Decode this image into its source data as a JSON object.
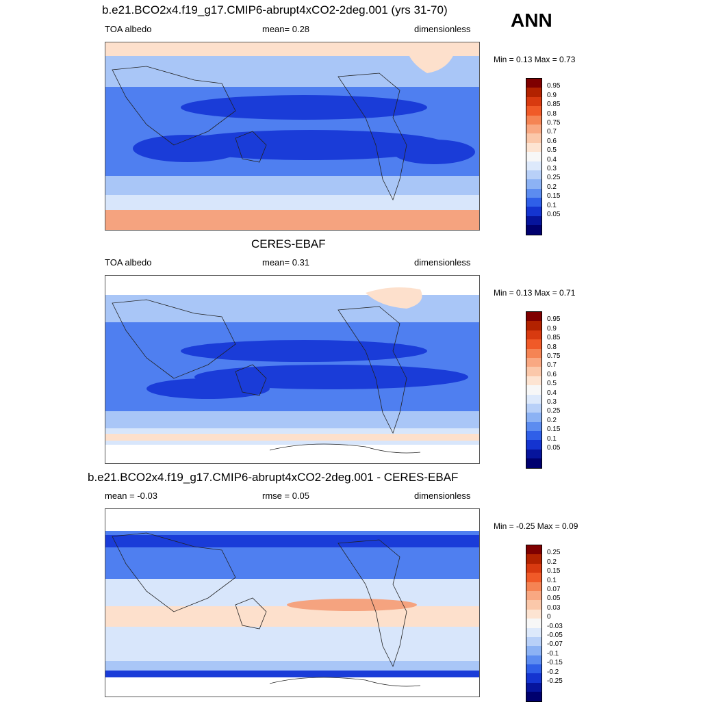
{
  "season": "ANN",
  "panels": [
    {
      "title": "b.e21.BCO2x4.f19_g17.CMIP6-abrupt4xCO2-2deg.001 (yrs 31-70)",
      "left_label": "TOA albedo",
      "center_label": "mean=   0.28",
      "right_label": "dimensionless",
      "minmax": "Min =   0.13 Max =   0.73",
      "colorbar_labels": [
        "0.95",
        "0.9",
        "0.85",
        "0.8",
        "0.75",
        "0.7",
        "0.6",
        "0.5",
        "0.4",
        "0.3",
        "0.25",
        "0.2",
        "0.15",
        "0.1",
        "0.05"
      ]
    },
    {
      "title": "CERES-EBAF",
      "left_label": "TOA albedo",
      "center_label": "mean=   0.31",
      "right_label": "dimensionless",
      "minmax": "Min =   0.13 Max =   0.71",
      "colorbar_labels": [
        "0.95",
        "0.9",
        "0.85",
        "0.8",
        "0.75",
        "0.7",
        "0.6",
        "0.5",
        "0.4",
        "0.3",
        "0.25",
        "0.2",
        "0.15",
        "0.1",
        "0.05"
      ]
    },
    {
      "title": "b.e21.BCO2x4.f19_g17.CMIP6-abrupt4xCO2-2deg.001 - CERES-EBAF",
      "left_label": "mean =  -0.03",
      "center_label": "rmse =   0.05",
      "right_label": "dimensionless",
      "minmax": "Min =  -0.25 Max =   0.09",
      "colorbar_labels": [
        "0.25",
        "0.2",
        "0.15",
        "0.1",
        "0.07",
        "0.05",
        "0.03",
        "0",
        "-0.03",
        "-0.05",
        "-0.07",
        "-0.1",
        "-0.15",
        "-0.2",
        "-0.25"
      ]
    }
  ],
  "colors": {
    "colorbar": [
      "#7f0000",
      "#b22200",
      "#d83a10",
      "#f05a28",
      "#f58454",
      "#f9a882",
      "#fbc8aa",
      "#fde4d2",
      "#f7f7f7",
      "#dde9fb",
      "#b8d0f8",
      "#8cb2f4",
      "#5c8cf0",
      "#2f5fe8",
      "#1434d0",
      "#06149c",
      "#00006e"
    ],
    "blue_deep": "#1a3cd8",
    "blue_mid": "#4f7ff0",
    "blue_light": "#a9c6f7",
    "blue_pale": "#d8e6fb",
    "orange_pale": "#fde0cc",
    "orange": "#f5a37f"
  }
}
